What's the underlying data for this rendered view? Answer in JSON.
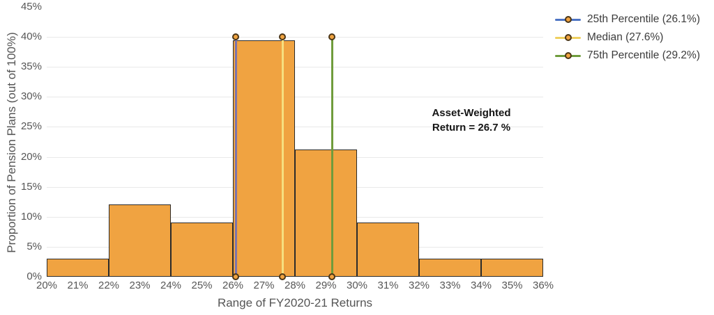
{
  "chart_data": {
    "type": "bar",
    "title": "",
    "xlabel": "Range of FY2020-21 Returns",
    "ylabel": "Proportion of Pension Plans (out of 100%)",
    "x_range": [
      20,
      36
    ],
    "y_range": [
      0,
      45
    ],
    "x_ticks": [
      "20%",
      "21%",
      "22%",
      "23%",
      "24%",
      "25%",
      "26%",
      "27%",
      "28%",
      "29%",
      "30%",
      "31%",
      "32%",
      "33%",
      "34%",
      "35%",
      "36%"
    ],
    "y_ticks": [
      "0%",
      "5%",
      "10%",
      "15%",
      "20%",
      "25%",
      "30%",
      "35%",
      "40%",
      "45%"
    ],
    "grid_on": true,
    "legend_position": "top-right",
    "bin_width": 2,
    "bins": [
      {
        "range": "20-22%",
        "start": 20,
        "end": 22,
        "value": 3.03
      },
      {
        "range": "22-24%",
        "start": 22,
        "end": 24,
        "value": 12.12
      },
      {
        "range": "24-26%",
        "start": 24,
        "end": 26,
        "value": 9.09
      },
      {
        "range": "26-28%",
        "start": 26,
        "end": 28,
        "value": 39.39
      },
      {
        "range": "28-30%",
        "start": 28,
        "end": 30,
        "value": 21.21
      },
      {
        "range": "30-32%",
        "start": 30,
        "end": 32,
        "value": 9.09
      },
      {
        "range": "32-34%",
        "start": 32,
        "end": 34,
        "value": 3.03
      },
      {
        "range": "34-36%",
        "start": 34,
        "end": 36,
        "value": 3.03
      }
    ],
    "percentile_lines": [
      {
        "label": "25th Percentile (26.1%)",
        "x": 26.1,
        "y_top": 40,
        "legend_color": "#4D74C4",
        "line_color": "#7D74AB"
      },
      {
        "label": "Median (27.6%)",
        "x": 27.6,
        "y_top": 40,
        "legend_color": "#EFD05F",
        "line_color": "#F6DF7F"
      },
      {
        "label": "75th Percentile (29.2%)",
        "x": 29.2,
        "y_top": 40,
        "legend_color": "#6F9C3C",
        "line_color": "#6F9C3C"
      }
    ],
    "annotation": {
      "line1": "Asset-Weighted",
      "line2": "Return = 26.7 %"
    },
    "colors": {
      "bar_fill": "#F0A341",
      "bar_border": "#2B2B2B",
      "grid": "#E9E9E9",
      "marker_fill": "#F0A341",
      "marker_border": "#4A3516",
      "tick_text": "#565656",
      "axis_title_text": "#555555",
      "legend_text": "#3C3C3C",
      "annotation_text": "#151515"
    }
  }
}
